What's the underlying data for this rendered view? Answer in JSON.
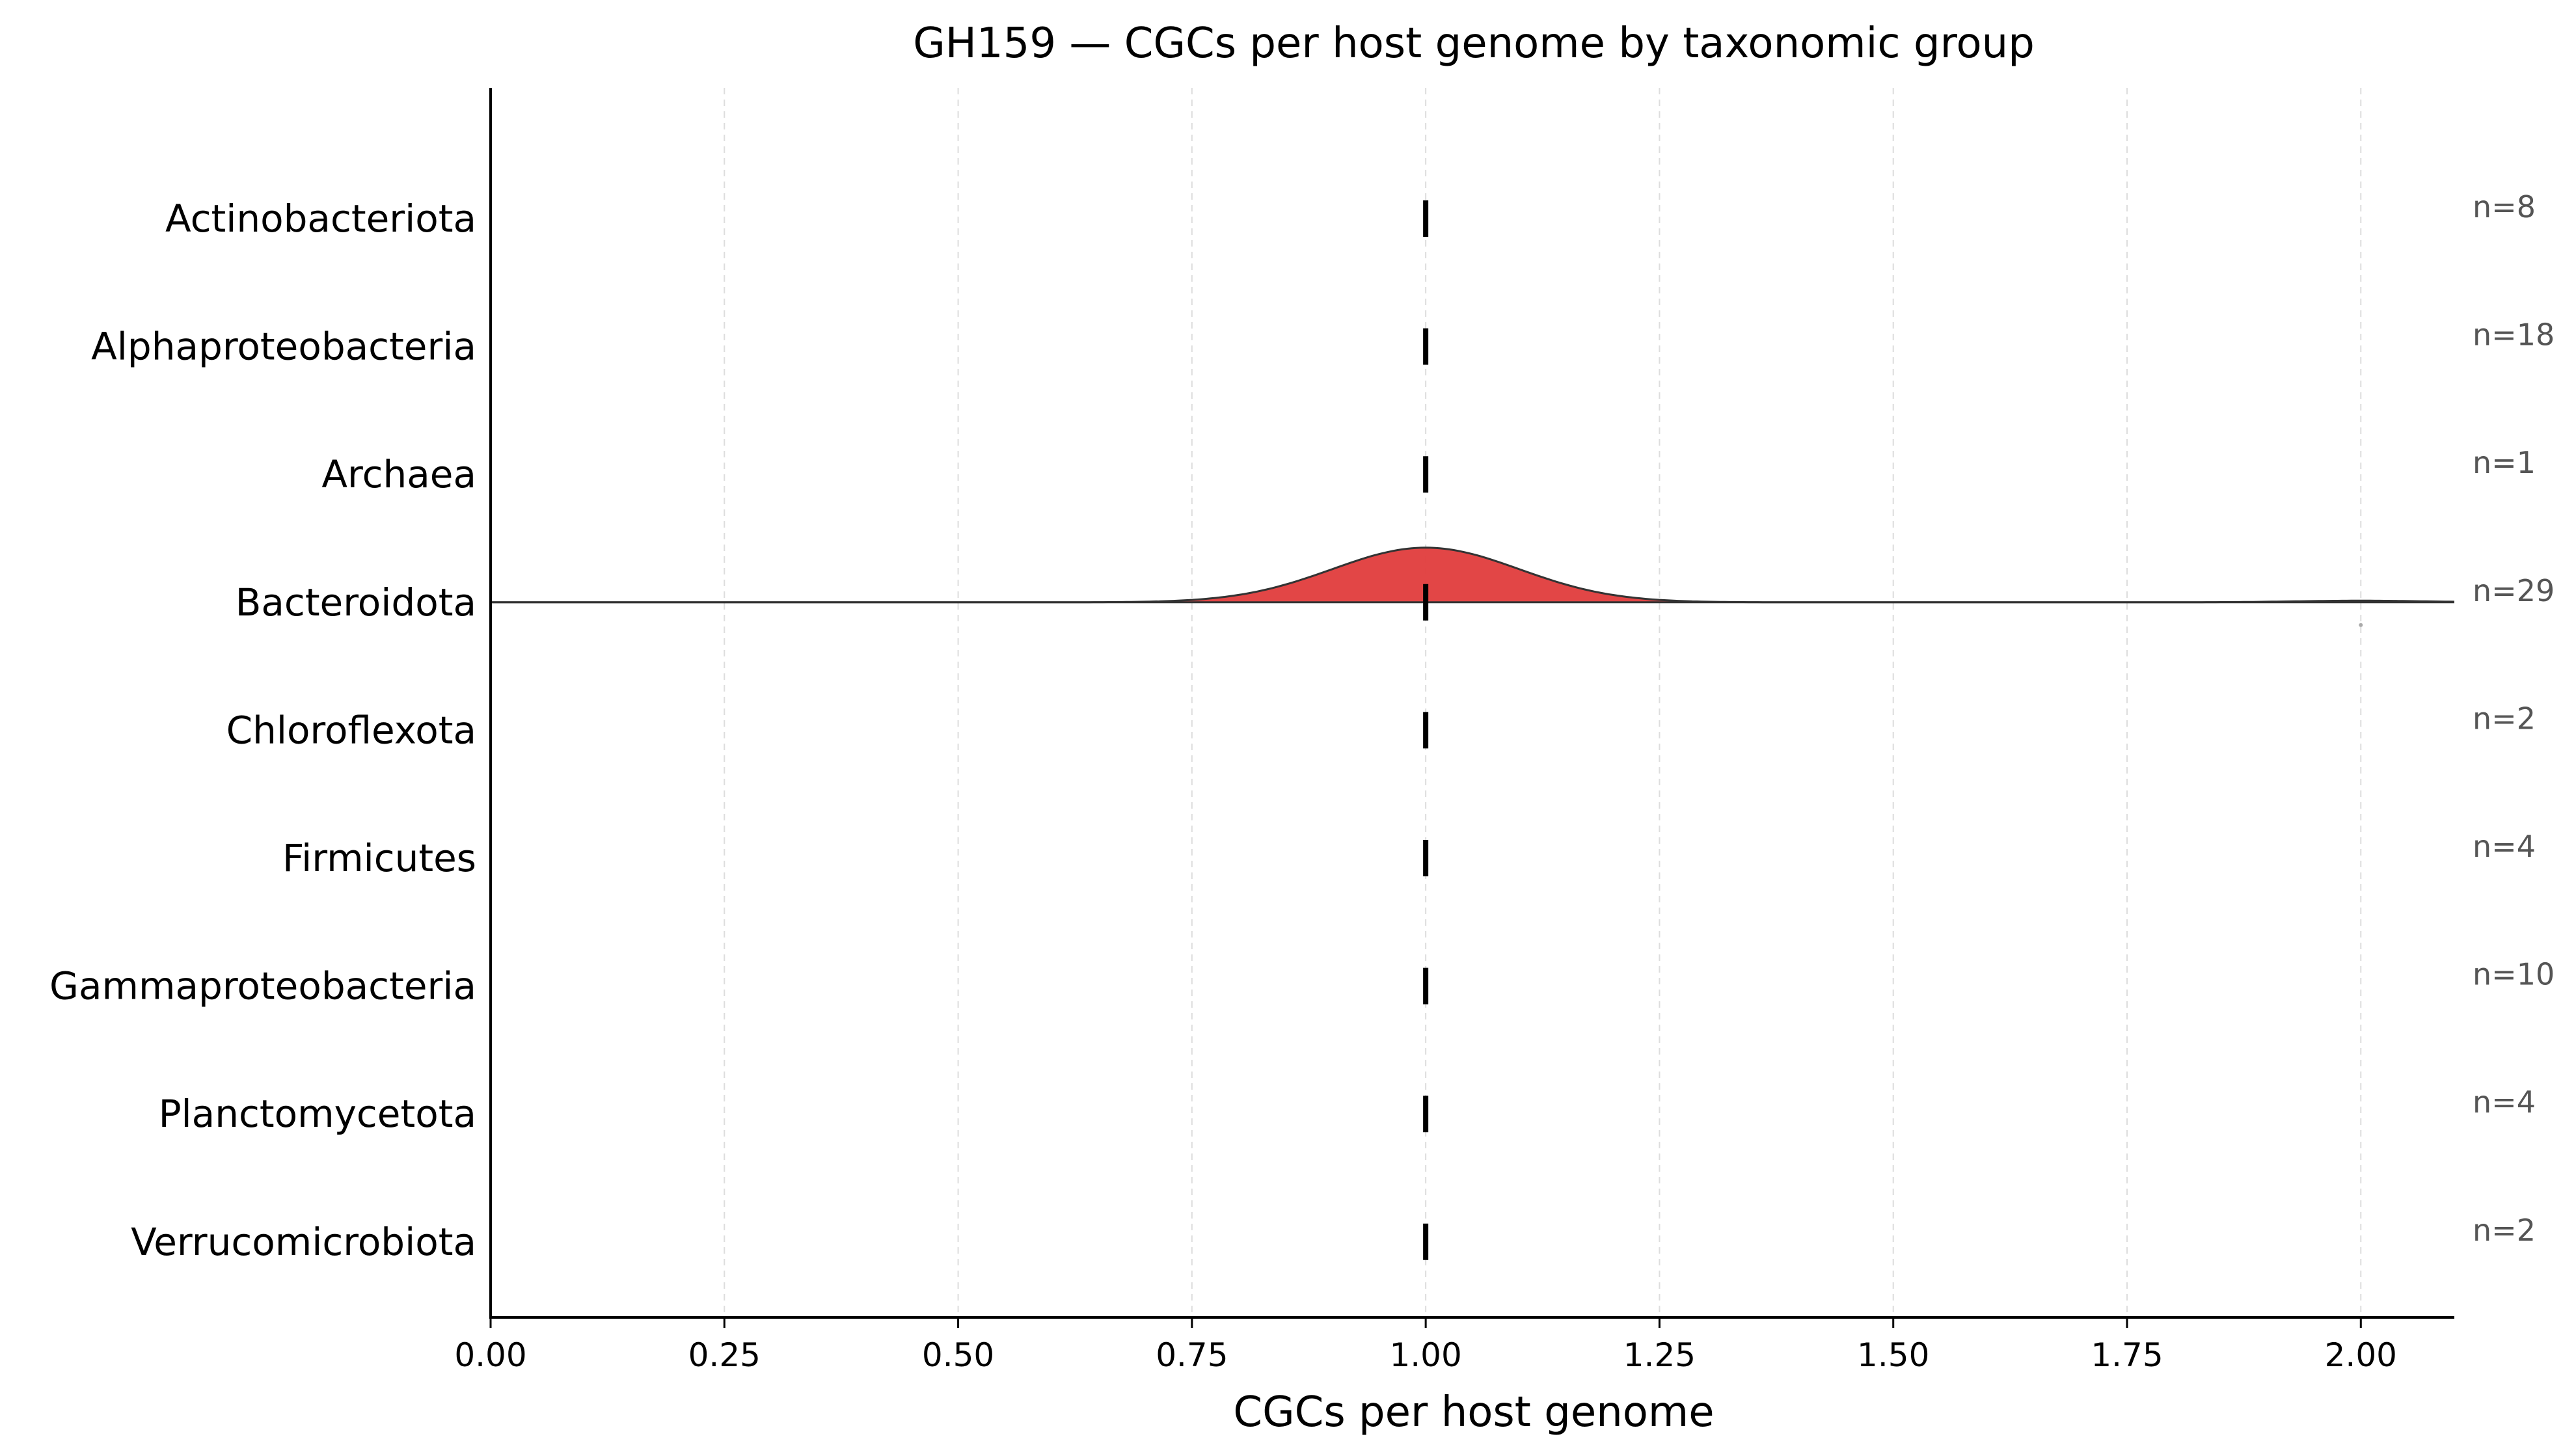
{
  "chart_data": {
    "type": "ridgeline",
    "title": "GH159 — CGCs per host genome by taxonomic group",
    "xlabel": "CGCs per host genome",
    "ylabel": "",
    "xlim": [
      0,
      2.1
    ],
    "x_ticks": [
      0.0,
      0.25,
      0.5,
      0.75,
      1.0,
      1.25,
      1.5,
      1.75,
      2.0
    ],
    "x_tick_labels": [
      "0.00",
      "0.25",
      "0.50",
      "0.75",
      "1.00",
      "1.25",
      "1.50",
      "1.75",
      "2.00"
    ],
    "grid": "x-dashed",
    "categories": [
      "Actinobacteriota",
      "Alphaproteobacteria",
      "Archaea",
      "Bacteroidota",
      "Chloroflexota",
      "Firmicutes",
      "Gammaproteobacteria",
      "Planctomycetota",
      "Verrucomicrobiota"
    ],
    "n_labels": [
      "n=8",
      "n=18",
      "n=1",
      "n=29",
      "n=2",
      "n=4",
      "n=10",
      "n=4",
      "n=2"
    ],
    "medians": [
      1.0,
      1.0,
      1.0,
      1.0,
      1.0,
      1.0,
      1.0,
      1.0,
      1.0
    ],
    "density": {
      "category": "Bacteroidota",
      "color": "#e03c3c",
      "peak_x": 1.0,
      "relative_secondary_peak_x": 2.0,
      "outlier_x": 2.0
    }
  }
}
